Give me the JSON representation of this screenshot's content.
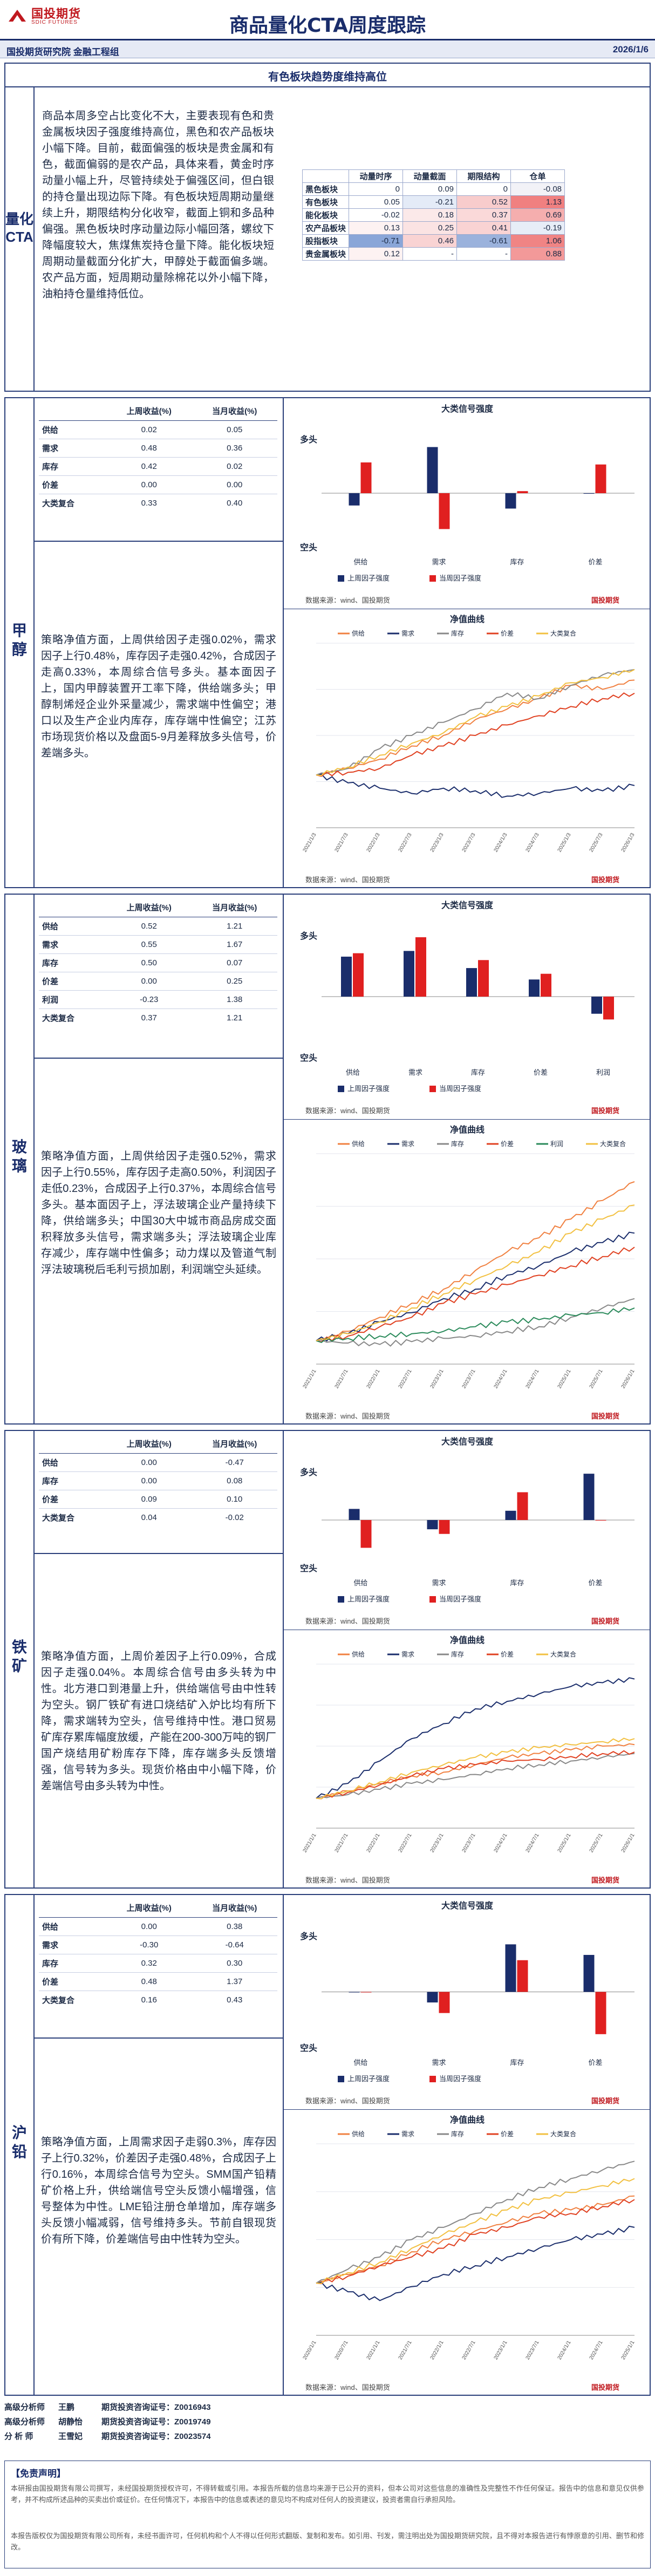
{
  "header": {
    "logo_cn": "国投期货",
    "logo_en": "SDIC FUTURES",
    "title": "商品量化CTA周度跟踪",
    "org": "国投期货研究院  金融工程组",
    "date": "2026/1/6"
  },
  "overview": {
    "subtitle": "有色板块趋势度维持高位",
    "label": "量化CTA",
    "text": "商品本周多空占比变化不大，主要表现有色和贵金属板块因子强度维持高位，黑色和农产品板块小幅下降。目前，截面偏强的板块是贵金属和有色，截面偏弱的是农产品，具体来看，黄金时序动量小幅上升，尽管持续处于偏强区间，但白银的持仓量出现边际下降。有色板块短周期动量继续上升，期限结构分化收窄，截面上铜和多品种偏强。黑色板块时序动量边际小幅回落，螺纹下降幅度较大，焦煤焦炭持仓量下降。能化板块短周期动量截面分化扩大，甲醇处于截面偏多端。农产品方面，短周期动量除棉花以外小幅下降，油粕持仓量维持低位。",
    "table": {
      "columns": [
        "动量时序",
        "动量截面",
        "期限结构",
        "仓单"
      ],
      "rows": [
        {
          "name": "黑色板块",
          "values": [
            "0",
            "0.09",
            "0",
            "-0.08"
          ],
          "colors": [
            "#ffffff",
            "#ffffff",
            "#ffffff",
            "#f2f2f7"
          ]
        },
        {
          "name": "有色板块",
          "values": [
            "0.05",
            "-0.21",
            "0.52",
            "1.13"
          ],
          "colors": [
            "#ffffff",
            "#e4ebf7",
            "#f8cccc",
            "#f08080"
          ]
        },
        {
          "name": "能化板块",
          "values": [
            "-0.02",
            "0.18",
            "0.37",
            "0.69"
          ],
          "colors": [
            "#ffffff",
            "#fbe9e9",
            "#fad9d9",
            "#f5aeae"
          ]
        },
        {
          "name": "农产品板块",
          "values": [
            "0.13",
            "0.25",
            "0.41",
            "-0.19"
          ],
          "colors": [
            "#fdf2f2",
            "#fbe3e3",
            "#f9d3d3",
            "#e7edf7"
          ]
        },
        {
          "name": "股指板块",
          "values": [
            "-0.71",
            "0.46",
            "-0.61",
            "1.06"
          ],
          "colors": [
            "#8aa6d8",
            "#f9d3d3",
            "#9bb2dc",
            "#f08484"
          ]
        },
        {
          "name": "贵金属板块",
          "values": [
            "0.12",
            "-",
            "-",
            "0.88"
          ],
          "colors": [
            "#fdf2f2",
            "#ffffff",
            "#ffffff",
            "#f39999"
          ]
        }
      ]
    }
  },
  "common": {
    "factor_headers": [
      "",
      "上周收益(%)",
      "当月收益(%)"
    ],
    "bar_chart_title": "大类信号强度",
    "line_chart_title": "净值曲线",
    "long_label": "多头",
    "short_label": "空头",
    "legend_last_week": "上周因子强度",
    "legend_this_week": "当周因子强度",
    "source": "数据来源：wind、国投期货",
    "brand": "国投期货"
  },
  "sections": [
    {
      "key": "methanol",
      "label": "甲醇",
      "factors": [
        {
          "name": "供给",
          "last_week": "0.02",
          "month": "0.05"
        },
        {
          "name": "需求",
          "last_week": "0.48",
          "month": "0.36"
        },
        {
          "name": "库存",
          "last_week": "0.42",
          "month": "0.02"
        },
        {
          "name": "价差",
          "last_week": "0.00",
          "month": "0.00"
        },
        {
          "name": "大类复合",
          "last_week": "0.33",
          "month": "0.40"
        }
      ],
      "text": "策略净值方面，上周供给因子走强0.02%，需求因子上行0.48%，库存因子走强0.42%，合成因子走高0.33%，本周综合信号多头。基本面因子上，国内甲醇装置开工率下降，供给端多头；甲醇制烯烃企业外采量减少，需求端中性偏空；港口以及生产企业内库存，库存端中性偏空；江苏市场现货价格以及盘面5-9月差释放多头信号，价差端多头。",
      "chart_data": [
        {
          "type": "bar",
          "title": "大类信号强度",
          "categories": [
            "供给",
            "需求",
            "库存",
            "价差"
          ],
          "series": [
            {
              "name": "上周因子强度",
              "color": "#1a2d6b",
              "values": [
                -0.12,
                0.45,
                -0.15,
                0.0
              ]
            },
            {
              "name": "当周因子强度",
              "color": "#e02020",
              "values": [
                0.3,
                -0.35,
                0.02,
                0.28
              ]
            }
          ],
          "ylim": [
            -0.6,
            0.6
          ]
        },
        {
          "type": "line",
          "title": "净值曲线",
          "x": [
            "2021/1/3",
            "2021/7/3",
            "2022/1/3",
            "2022/7/3",
            "2023/1/3",
            "2023/7/3",
            "2024/1/3",
            "2024/7/3",
            "2025/1/3",
            "2025/7/3",
            "2026/1/3"
          ],
          "series": [
            {
              "name": "供给",
              "color": "#f08040",
              "values": [
                1.0,
                1.05,
                1.12,
                1.22,
                1.3,
                1.42,
                1.5,
                1.58,
                1.68,
                1.65,
                1.72
              ]
            },
            {
              "name": "需求",
              "color": "#1a2d6b",
              "values": [
                1.0,
                0.94,
                0.9,
                0.86,
                0.9,
                0.88,
                0.84,
                0.86,
                0.9,
                0.88,
                0.92
              ]
            },
            {
              "name": "库存",
              "color": "#888888",
              "values": [
                1.0,
                1.05,
                1.2,
                1.3,
                1.4,
                1.5,
                1.62,
                1.58,
                1.68,
                1.76,
                1.8
              ]
            },
            {
              "name": "价差",
              "color": "#e04020",
              "values": [
                1.0,
                1.02,
                1.05,
                1.15,
                1.22,
                1.3,
                1.38,
                1.45,
                1.52,
                1.58,
                1.62
              ]
            },
            {
              "name": "大类复合",
              "color": "#f2c040",
              "values": [
                1.0,
                1.06,
                1.15,
                1.24,
                1.32,
                1.44,
                1.52,
                1.6,
                1.7,
                1.74,
                1.8
              ]
            }
          ],
          "ylim": [
            0.6,
            2.0
          ]
        }
      ]
    },
    {
      "key": "glass",
      "label": "玻璃",
      "factors": [
        {
          "name": "供给",
          "last_week": "0.52",
          "month": "1.21"
        },
        {
          "name": "需求",
          "last_week": "0.55",
          "month": "1.67"
        },
        {
          "name": "库存",
          "last_week": "0.50",
          "month": "0.07"
        },
        {
          "name": "价差",
          "last_week": "0.00",
          "month": "0.25"
        },
        {
          "name": "利润",
          "last_week": "-0.23",
          "month": "1.38"
        },
        {
          "name": "大类复合",
          "last_week": "0.37",
          "month": "1.21"
        }
      ],
      "text": "策略净值方面，上周供给因子走强0.52%，需求因子上行0.55%，库存因子走高0.50%，利润因子走低0.23%，合成因子上行0.37%，本周综合信号多头。基本面因子上，浮法玻璃企业产量持续下降，供给端多头；中国30大中城市商品房成交面积释放多头信号，需求端多头；浮法玻璃企业库存减少，库存端中性偏多；动力煤以及管道气制浮法玻璃税后毛利亏损加剧，利润端空头延续。",
      "chart_data": [
        {
          "type": "bar",
          "title": "大类信号强度",
          "categories": [
            "供给",
            "需求",
            "库存",
            "价差",
            "利润"
          ],
          "series": [
            {
              "name": "上周因子强度",
              "color": "#1a2d6b",
              "values": [
                0.35,
                0.4,
                0.25,
                0.15,
                -0.15
              ]
            },
            {
              "name": "当周因子强度",
              "color": "#e02020",
              "values": [
                0.38,
                0.52,
                0.32,
                0.2,
                -0.2
              ]
            }
          ],
          "ylim": [
            -0.6,
            0.6
          ]
        },
        {
          "type": "line",
          "title": "净值曲线",
          "x": [
            "2021/1/1",
            "2021/7/1",
            "2022/1/1",
            "2022/7/1",
            "2023/1/1",
            "2023/7/1",
            "2024/1/1",
            "2024/7/1",
            "2025/1/1",
            "2025/7/1",
            "2026/1/1"
          ],
          "series": [
            {
              "name": "供给",
              "color": "#f08040",
              "values": [
                1.0,
                1.2,
                1.5,
                1.8,
                2.1,
                2.5,
                2.9,
                3.2,
                3.6,
                4.0,
                4.4
              ]
            },
            {
              "name": "需求",
              "color": "#1a2d6b",
              "values": [
                1.0,
                1.15,
                1.4,
                1.6,
                1.9,
                2.1,
                2.4,
                2.6,
                2.9,
                3.1,
                3.3
              ]
            },
            {
              "name": "库存",
              "color": "#888888",
              "values": [
                1.0,
                0.95,
                0.92,
                0.98,
                1.05,
                1.1,
                1.2,
                1.3,
                1.5,
                1.7,
                1.9
              ]
            },
            {
              "name": "价差",
              "color": "#e04020",
              "values": [
                1.0,
                1.1,
                1.3,
                1.5,
                1.8,
                2.0,
                2.2,
                2.4,
                2.6,
                2.8,
                3.0
              ]
            },
            {
              "name": "利润",
              "color": "#2a8a5a",
              "values": [
                1.0,
                1.05,
                1.1,
                1.15,
                1.2,
                1.3,
                1.4,
                1.45,
                1.55,
                1.6,
                1.7
              ]
            },
            {
              "name": "大类复合",
              "color": "#f2c040",
              "values": [
                1.0,
                1.15,
                1.4,
                1.7,
                2.0,
                2.3,
                2.6,
                2.9,
                3.3,
                3.6,
                3.9
              ]
            }
          ],
          "ylim": [
            0.5,
            5.0
          ]
        }
      ]
    },
    {
      "key": "iron-ore",
      "label": "铁矿",
      "factors": [
        {
          "name": "供给",
          "last_week": "0.00",
          "month": "-0.47"
        },
        {
          "name": "库存",
          "last_week": "0.00",
          "month": "0.08"
        },
        {
          "name": "价差",
          "last_week": "0.09",
          "month": "0.10"
        },
        {
          "name": "大类复合",
          "last_week": "0.04",
          "month": "-0.02"
        }
      ],
      "text": "策略净值方面，上周价差因子上行0.09%，合成因子走强0.04%。本周综合信号由多头转为中性。北方港口到港量上升，供给端信号由中性转为空头。钢厂铁矿有进口烧结矿入炉比均有所下降，需求端转为空头，信号维持中性。港口贸易矿库存累库幅度放缓，产能在200-300万吨的钢厂国产烧结用矿粉库存下降，库存端多头反馈增强，信号转为多头。现货价格由中小幅下降，价差端信号由多头转为中性。",
      "chart_data": [
        {
          "type": "bar",
          "title": "大类信号强度",
          "categories": [
            "供给",
            "需求",
            "库存",
            "价差"
          ],
          "series": [
            {
              "name": "上周因子强度",
              "color": "#1a2d6b",
              "values": [
                0.12,
                -0.1,
                0.1,
                0.5
              ]
            },
            {
              "name": "当周因子强度",
              "color": "#e02020",
              "values": [
                -0.3,
                -0.15,
                0.3,
                0.0
              ]
            }
          ],
          "ylim": [
            -0.6,
            0.6
          ]
        },
        {
          "type": "line",
          "title": "净值曲线",
          "x": [
            "2021/1/1",
            "2021/7/1",
            "2022/1/1",
            "2022/7/1",
            "2023/1/1",
            "2023/7/1",
            "2024/1/1",
            "2024/7/1",
            "2025/1/1",
            "2025/7/1",
            "2026/1/1"
          ],
          "series": [
            {
              "name": "供给",
              "color": "#f08040",
              "values": [
                1.0,
                1.1,
                1.2,
                1.3,
                1.35,
                1.45,
                1.55,
                1.6,
                1.65,
                1.7,
                1.72
              ]
            },
            {
              "name": "需求",
              "color": "#1a2d6b",
              "values": [
                1.0,
                1.2,
                1.5,
                1.8,
                2.0,
                2.2,
                2.3,
                2.4,
                2.5,
                2.55,
                2.6
              ]
            },
            {
              "name": "库存",
              "color": "#888888",
              "values": [
                1.0,
                1.05,
                1.12,
                1.2,
                1.25,
                1.32,
                1.4,
                1.45,
                1.5,
                1.55,
                1.6
              ]
            },
            {
              "name": "价差",
              "color": "#e04020",
              "values": [
                1.0,
                1.08,
                1.18,
                1.3,
                1.4,
                1.45,
                1.5,
                1.52,
                1.56,
                1.6,
                1.62
              ]
            },
            {
              "name": "大类复合",
              "color": "#f2c040",
              "values": [
                1.0,
                1.1,
                1.22,
                1.35,
                1.45,
                1.55,
                1.62,
                1.68,
                1.72,
                1.76,
                1.8
              ]
            }
          ],
          "ylim": [
            0.6,
            2.8
          ]
        }
      ]
    },
    {
      "key": "lead",
      "label": "沪铅",
      "factors": [
        {
          "name": "供给",
          "last_week": "0.00",
          "month": "0.38"
        },
        {
          "name": "需求",
          "last_week": "-0.30",
          "month": "-0.64"
        },
        {
          "name": "库存",
          "last_week": "0.32",
          "month": "0.30"
        },
        {
          "name": "价差",
          "last_week": "0.48",
          "month": "1.37"
        },
        {
          "name": "大类复合",
          "last_week": "0.16",
          "month": "0.43"
        }
      ],
      "text": "策略净值方面，上周需求因子走弱0.3%，库存因子上行0.32%，价差因子走强0.48%，合成因子上行0.16%，本周综合信号为空头。SMM国产铅精矿价格上升，供给端信号空头反馈小幅增强，信号整体为中性。LME铅注册仓单增加，库存端多头反馈小幅减弱，信号维持多头。节前自银现货价有所下降，价差端信号由中性转为空头。",
      "chart_data": [
        {
          "type": "bar",
          "title": "大类信号强度",
          "categories": [
            "供给",
            "需求",
            "库存",
            "价差"
          ],
          "series": [
            {
              "name": "上周因子强度",
              "color": "#1a2d6b",
              "values": [
                0.0,
                -0.1,
                0.45,
                0.35
              ]
            },
            {
              "name": "当周因子强度",
              "color": "#e02020",
              "values": [
                0.0,
                -0.2,
                0.3,
                -0.4
              ]
            }
          ],
          "ylim": [
            -0.6,
            0.6
          ]
        },
        {
          "type": "line",
          "title": "净值曲线",
          "x": [
            "2020/1/1",
            "2020/7/1",
            "2021/1/1",
            "2021/7/1",
            "2022/1/1",
            "2022/7/1",
            "2023/1/1",
            "2023/7/1",
            "2024/1/1",
            "2024/7/1",
            "2025/1/1"
          ],
          "series": [
            {
              "name": "供给",
              "color": "#f08040",
              "values": [
                1.0,
                1.05,
                1.1,
                1.18,
                1.25,
                1.3,
                1.35,
                1.4,
                1.42,
                1.45,
                1.5
              ]
            },
            {
              "name": "需求",
              "color": "#1a2d6b",
              "values": [
                1.0,
                0.95,
                0.9,
                0.98,
                1.05,
                1.1,
                1.15,
                1.2,
                1.25,
                1.28,
                1.32
              ]
            },
            {
              "name": "库存",
              "color": "#888888",
              "values": [
                1.0,
                1.08,
                1.15,
                1.25,
                1.32,
                1.4,
                1.48,
                1.55,
                1.6,
                1.65,
                1.7
              ]
            },
            {
              "name": "价差",
              "color": "#e04020",
              "values": [
                1.0,
                1.04,
                1.1,
                1.15,
                1.2,
                1.28,
                1.32,
                1.38,
                1.4,
                1.44,
                1.48
              ]
            },
            {
              "name": "大类复合",
              "color": "#f2c040",
              "values": [
                1.0,
                1.06,
                1.12,
                1.2,
                1.28,
                1.35,
                1.42,
                1.48,
                1.52,
                1.56,
                1.6
              ]
            }
          ],
          "ylim": [
            0.7,
            1.8
          ]
        }
      ]
    }
  ],
  "analysts": [
    {
      "role": "高级分析师",
      "name": "王鹏",
      "cert": "期货投资咨询证号：Z0016943"
    },
    {
      "role": "高级分析师",
      "name": "胡静怡",
      "cert": "期货投资咨询证号：Z0019749"
    },
    {
      "role": "分  析  师",
      "name": "王雪妃",
      "cert": "期货投资咨询证号：Z0023574"
    }
  ],
  "disclaimer": {
    "title": "【免责声明】",
    "p1": "本研报由国投期货有限公司撰写，未经国投期货授权许可，不得转载或引用。本报告所载的信息均来源于已公开的资料，但本公司对这些信息的准确性及完整性不作任何保证。报告中的信息和意见仅供参考，并不构成所述品种的买卖出价或征价。在任何情况下，本报告中的信息或表述的意见均不构成对任何人的投资建议，投资者需自行承担风险。",
    "p2": "本报告版权仅为国投期货有限公司所有，未经书面许可，任何机构和个人不得以任何形式翻版、复制和发布。如引用、刊发，需注明出处为国投期货研究院，且不得对本报告进行有悖原意的引用、删节和修改。"
  }
}
